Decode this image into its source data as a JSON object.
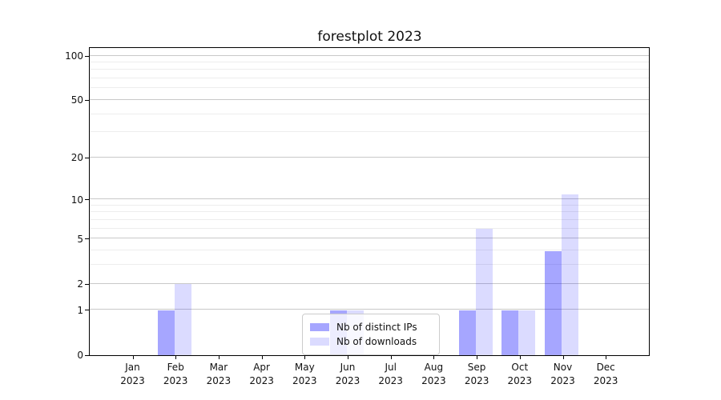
{
  "chart_data": {
    "type": "bar",
    "title": "forestplot 2023",
    "categories": [
      "Jan 2023",
      "Feb 2023",
      "Mar 2023",
      "Apr 2023",
      "May 2023",
      "Jun 2023",
      "Jul 2023",
      "Aug 2023",
      "Sep 2023",
      "Oct 2023",
      "Nov 2023",
      "Dec 2023"
    ],
    "series": [
      {
        "name": "Nb of distinct IPs",
        "color": "#0000ff",
        "alpha": 0.35,
        "values": [
          0,
          1,
          0,
          0,
          0,
          1,
          0,
          0,
          1,
          1,
          4,
          0
        ]
      },
      {
        "name": "Nb of downloads",
        "color": "#0000ff",
        "alpha": 0.14,
        "values": [
          0,
          2,
          0,
          0,
          0,
          1,
          0,
          0,
          6,
          1,
          11,
          0
        ]
      }
    ],
    "xlabel": "",
    "ylabel": "",
    "yscale": "log1p",
    "ylim": [
      0,
      115
    ],
    "ytick_values": [
      0,
      1,
      2,
      5,
      10,
      20,
      50,
      100
    ],
    "ytick_minor_values": [
      3,
      4,
      6,
      7,
      8,
      9,
      30,
      40,
      60,
      70,
      80,
      90
    ],
    "grid": true,
    "legend_position": "lower center",
    "colors": {
      "bar_distinct_ips": "#a8a8f8",
      "bar_downloads": "#dcddfb",
      "grid_major": "#c9c9c9",
      "grid_minor": "#ededed",
      "axis": "#000000",
      "legend_border": "#cccccc"
    }
  }
}
